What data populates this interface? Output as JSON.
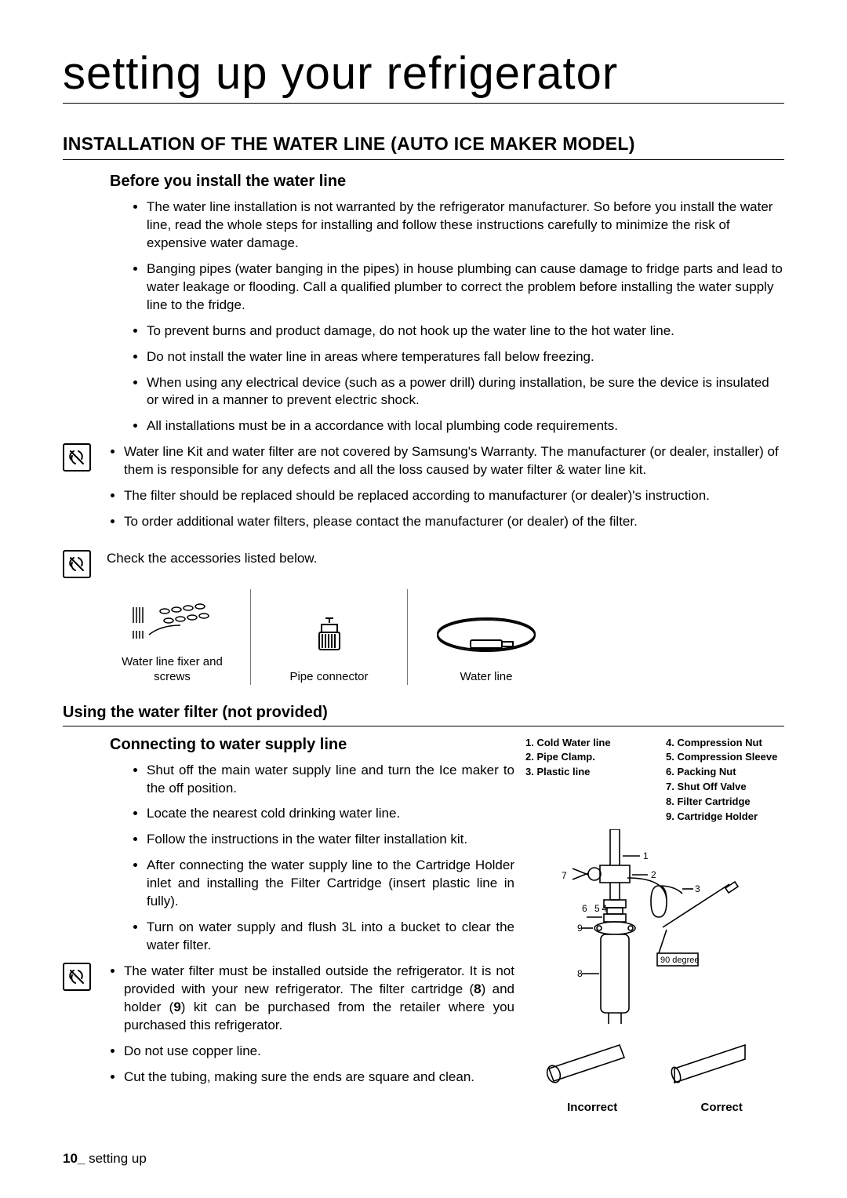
{
  "page": {
    "title": "setting up your refrigerator",
    "section_heading": "INSTALLATION OF THE WATER LINE (AUTO ICE MAKER MODEL)",
    "footer_page": "10_",
    "footer_text": " setting up"
  },
  "before": {
    "heading": "Before you install the water line",
    "bullets": [
      "The water line installation is not warranted by the refrigerator manufacturer. So before you install the water line, read the whole steps for installing and follow these instructions carefully to minimize the risk of expensive water damage.",
      "Banging pipes (water banging in the pipes) in house plumbing can cause damage to fridge parts and lead to water leakage or flooding. Call a qualified plumber to correct the problem before installing the water supply line to the fridge.",
      "To prevent burns and product damage, do not hook up the water line to the hot water line.",
      "Do not install the water line in areas where temperatures fall below freezing.",
      "When using any electrical device (such as a power drill) during installation, be sure the device is insulated or wired in a manner to prevent electric shock.",
      "All installations must be in a accordance with local plumbing code requirements."
    ]
  },
  "note1": {
    "bullets": [
      "Water line Kit and water filter are not covered by Samsung's Warranty. The manufacturer (or dealer, installer) of them is responsible for any defects and all the loss caused by water filter & water line kit.",
      "The filter should be replaced should be replaced according to manufacturer (or dealer)'s instruction.",
      "To order additional water filters, please contact the manufacturer (or dealer) of the filter."
    ]
  },
  "note2": {
    "text": "Check the accessories listed below."
  },
  "accessories": [
    {
      "label": "Water line fixer and screws"
    },
    {
      "label": "Pipe connector"
    },
    {
      "label": "Water line"
    }
  ],
  "filter": {
    "heading": "Using the water filter (not provided)",
    "sub_heading": "Connecting to water supply line",
    "bullets": [
      "Shut off the main water supply line and turn the Ice maker to the off position.",
      "Locate the nearest cold drinking water line.",
      "Follow the instructions in the water filter installation kit.",
      "After connecting the water supply line to the Cartridge Holder inlet and installing the Filter Cartridge (insert plastic line in fully).",
      "Turn on water supply and flush 3L into a bucket to clear the water filter."
    ]
  },
  "note3": {
    "bullets_html": [
      "The water filter must be installed outside the refrigerator. It is not provided with your new refrigerator. The filter cartridge (<b>8</b>) and holder (<b>9</b>) kit can be purchased from the retailer where you purchased this refrigerator.",
      "Do not use copper line.",
      "Cut the tubing, making sure the ends are square and clean."
    ]
  },
  "diagram": {
    "legend_left": [
      "1. Cold Water line",
      "2. Pipe Clamp.",
      "3. Plastic line"
    ],
    "legend_right": [
      "4. Compression Nut",
      "5. Compression Sleeve",
      "6. Packing Nut",
      "7. Shut Off Valve",
      "8. Filter Cartridge",
      "9. Cartridge Holder"
    ],
    "angle_label": "90 degree",
    "incorrect": "Incorrect",
    "correct": "Correct"
  }
}
